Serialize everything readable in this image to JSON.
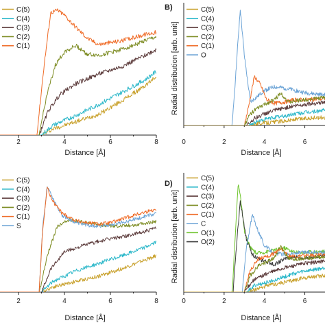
{
  "colors": {
    "C(5)": "#c8a02a",
    "C(4)": "#2ab7c9",
    "C(3)": "#5b3a3a",
    "C(2)": "#7d8c23",
    "C(1)": "#ef6a25",
    "O": "#6ba3d6",
    "S": "#6ba3d6",
    "C": "#6ba3d6",
    "O(1)": "#6fc42e",
    "O(2)": "#3b3b3b"
  },
  "chart_data": [
    {
      "panel": "A",
      "letter": "",
      "type": "line",
      "xlabel": "Distance [Å]",
      "ylabel": "",
      "xlim": [
        0,
        8
      ],
      "xticks": [
        "2",
        "4",
        "6",
        "8"
      ],
      "legend": [
        "C(5)",
        "C(4)",
        "C(3)",
        "C(2)",
        "C(1)"
      ],
      "legend_position": "top-left",
      "series": [
        {
          "name": "C(5)",
          "x": [
            0,
            3.0,
            3.5,
            4.5,
            5.5,
            6.5,
            7.5,
            8.0
          ],
          "y": [
            0,
            0,
            0.05,
            0.11,
            0.17,
            0.28,
            0.4,
            0.48
          ]
        },
        {
          "name": "C(4)",
          "x": [
            0,
            3.0,
            3.5,
            4.5,
            5.5,
            6.5,
            7.5,
            8.0
          ],
          "y": [
            0,
            0,
            0.08,
            0.16,
            0.25,
            0.35,
            0.45,
            0.52
          ]
        },
        {
          "name": "C(3)",
          "x": [
            0,
            2.9,
            3.3,
            3.8,
            4.5,
            5.5,
            6.5,
            7.5,
            8.0
          ],
          "y": [
            0,
            0,
            0.2,
            0.33,
            0.42,
            0.5,
            0.56,
            0.65,
            0.7
          ]
        },
        {
          "name": "C(2)",
          "x": [
            0,
            2.9,
            3.2,
            3.6,
            4.0,
            4.5,
            5.0,
            5.5,
            6.5,
            7.5,
            8.0
          ],
          "y": [
            0,
            0,
            0.3,
            0.57,
            0.68,
            0.73,
            0.66,
            0.65,
            0.7,
            0.77,
            0.8
          ]
        },
        {
          "name": "C(1)",
          "x": [
            0,
            2.8,
            3.1,
            3.4,
            3.7,
            4.0,
            4.5,
            5.0,
            5.5,
            6.5,
            7.5,
            8.0
          ],
          "y": [
            0,
            0,
            0.55,
            1.0,
            1.02,
            0.98,
            0.88,
            0.79,
            0.74,
            0.77,
            0.82,
            0.84
          ]
        }
      ]
    },
    {
      "panel": "B",
      "letter": "B)",
      "type": "line",
      "xlabel": "Distance [Å]",
      "ylabel": "Radial distribution [arb. unit]",
      "xlim": [
        0,
        7
      ],
      "xticks": [
        "0",
        "2",
        "4",
        "6"
      ],
      "legend": [
        "C(5)",
        "C(4)",
        "C(3)",
        "C(2)",
        "C(1)",
        "O"
      ],
      "legend_position": "top-left",
      "series": [
        {
          "name": "O",
          "x": [
            0,
            2.4,
            2.6,
            2.8,
            3.0,
            3.3,
            3.6,
            4.0,
            4.5,
            5.0,
            5.5,
            6.0,
            7.0
          ],
          "y": [
            0,
            0,
            0.5,
            1.0,
            0.6,
            0.2,
            0.24,
            0.3,
            0.33,
            0.32,
            0.3,
            0.28,
            0.26
          ]
        },
        {
          "name": "C(1)",
          "x": [
            0,
            3.0,
            3.2,
            3.5,
            3.8,
            4.1,
            4.5,
            5.0,
            5.5,
            6.0,
            7.0
          ],
          "y": [
            0,
            0,
            0.15,
            0.42,
            0.35,
            0.22,
            0.19,
            0.2,
            0.22,
            0.22,
            0.23
          ]
        },
        {
          "name": "C(2)",
          "x": [
            0,
            3.0,
            3.3,
            3.6,
            4.0,
            4.5,
            4.8,
            5.2,
            5.6,
            6.0,
            7.0
          ],
          "y": [
            0,
            0,
            0.1,
            0.14,
            0.18,
            0.22,
            0.28,
            0.2,
            0.21,
            0.22,
            0.24
          ]
        },
        {
          "name": "C(3)",
          "x": [
            0,
            3.1,
            3.5,
            4.0,
            4.5,
            5.0,
            5.5,
            6.0,
            7.0
          ],
          "y": [
            0,
            0,
            0.06,
            0.1,
            0.13,
            0.15,
            0.17,
            0.18,
            0.2
          ]
        },
        {
          "name": "C(4)",
          "x": [
            0,
            3.2,
            3.6,
            4.0,
            4.5,
            5.0,
            5.5,
            6.0,
            7.0
          ],
          "y": [
            0,
            0,
            0.03,
            0.05,
            0.07,
            0.08,
            0.1,
            0.11,
            0.13
          ]
        },
        {
          "name": "C(5)",
          "x": [
            0,
            3.3,
            3.8,
            4.5,
            5.0,
            5.5,
            6.0,
            7.0
          ],
          "y": [
            0,
            0,
            0.02,
            0.03,
            0.04,
            0.05,
            0.06,
            0.07
          ]
        }
      ]
    },
    {
      "panel": "C",
      "letter": "",
      "type": "line",
      "xlabel": "Distance [Å]",
      "ylabel": "",
      "xlim": [
        0,
        8
      ],
      "xticks": [
        "2",
        "4",
        "6",
        "8"
      ],
      "legend": [
        "C(5)",
        "C(4)",
        "C(3)",
        "C(2)",
        "C(1)",
        "S"
      ],
      "legend_position": "top-left",
      "series": [
        {
          "name": "C(5)",
          "x": [
            0,
            3.0,
            3.5,
            4.5,
            5.5,
            6.5,
            7.5,
            8.0
          ],
          "y": [
            0,
            0,
            0.05,
            0.1,
            0.15,
            0.22,
            0.3,
            0.34
          ]
        },
        {
          "name": "C(4)",
          "x": [
            0,
            3.0,
            3.5,
            4.5,
            5.5,
            6.5,
            7.5,
            8.0
          ],
          "y": [
            0,
            0,
            0.1,
            0.2,
            0.27,
            0.34,
            0.42,
            0.47
          ]
        },
        {
          "name": "C(3)",
          "x": [
            0,
            3.0,
            3.4,
            4.0,
            5.0,
            6.0,
            7.0,
            8.0
          ],
          "y": [
            0,
            0,
            0.22,
            0.38,
            0.45,
            0.5,
            0.54,
            0.6
          ]
        },
        {
          "name": "C(2)",
          "x": [
            0,
            2.9,
            3.3,
            3.7,
            4.2,
            5.0,
            6.0,
            7.0,
            8.0
          ],
          "y": [
            0,
            0,
            0.38,
            0.62,
            0.68,
            0.65,
            0.62,
            0.63,
            0.66
          ]
        },
        {
          "name": "S",
          "x": [
            0,
            2.9,
            3.05,
            3.25,
            3.5,
            3.9,
            4.5,
            5.0,
            5.5,
            6.0,
            7.0,
            8.0
          ],
          "y": [
            0,
            0,
            0.6,
            1.0,
            0.88,
            0.72,
            0.65,
            0.63,
            0.62,
            0.63,
            0.68,
            0.74
          ]
        },
        {
          "name": "C(1)",
          "x": [
            0,
            2.9,
            3.05,
            3.25,
            3.5,
            3.9,
            4.5,
            5.0,
            5.5,
            6.0,
            7.0,
            8.0
          ],
          "y": [
            0,
            0,
            0.58,
            0.98,
            0.85,
            0.74,
            0.67,
            0.65,
            0.64,
            0.65,
            0.72,
            0.78
          ]
        }
      ]
    },
    {
      "panel": "D",
      "letter": "D)",
      "type": "line",
      "xlabel": "Distance [Å]",
      "ylabel": "Radial distribution [arb. unit]",
      "xlim": [
        0,
        7
      ],
      "xticks": [
        "0",
        "2",
        "4",
        "6"
      ],
      "legend": [
        "C(5)",
        "C(4)",
        "C(3)",
        "C(2)",
        "C(1)",
        "C",
        "O(1)",
        "O(2)"
      ],
      "legend_position": "top-left",
      "series": [
        {
          "name": "O(1)",
          "x": [
            0,
            2.4,
            2.55,
            2.7,
            2.85,
            3.0,
            3.3,
            3.6,
            4.0,
            4.5,
            5.0,
            5.5,
            6.0,
            7.0
          ],
          "y": [
            0,
            0,
            0.5,
            1.0,
            0.8,
            0.55,
            0.4,
            0.35,
            0.36,
            0.38,
            0.4,
            0.36,
            0.36,
            0.37
          ]
        },
        {
          "name": "O(2)",
          "x": [
            0,
            2.45,
            2.6,
            2.8,
            2.95,
            3.1,
            3.4,
            3.7,
            4.0,
            4.5,
            5.0,
            5.5,
            6.0,
            7.0
          ],
          "y": [
            0,
            0,
            0.4,
            0.82,
            0.66,
            0.48,
            0.34,
            0.3,
            0.28,
            0.25,
            0.3,
            0.32,
            0.31,
            0.33
          ]
        },
        {
          "name": "C",
          "x": [
            0,
            2.9,
            3.1,
            3.4,
            3.7,
            4.0,
            4.5,
            5.0,
            5.5,
            6.0,
            7.0
          ],
          "y": [
            0,
            0,
            0.4,
            0.7,
            0.55,
            0.42,
            0.35,
            0.34,
            0.35,
            0.36,
            0.36
          ]
        },
        {
          "name": "C(1)",
          "x": [
            0,
            3.0,
            3.3,
            3.7,
            4.1,
            4.5,
            4.8,
            5.2,
            5.6,
            6.0,
            7.0
          ],
          "y": [
            0,
            0,
            0.2,
            0.3,
            0.32,
            0.35,
            0.4,
            0.33,
            0.32,
            0.33,
            0.34
          ]
        },
        {
          "name": "C(2)",
          "x": [
            0,
            3.0,
            3.3,
            3.7,
            4.1,
            4.5,
            4.8,
            5.2,
            5.6,
            6.0,
            7.0
          ],
          "y": [
            0,
            0,
            0.15,
            0.24,
            0.27,
            0.31,
            0.42,
            0.3,
            0.3,
            0.31,
            0.32
          ]
        },
        {
          "name": "C(3)",
          "x": [
            0,
            3.0,
            3.4,
            3.8,
            4.3,
            5.0,
            5.5,
            6.0,
            7.0
          ],
          "y": [
            0,
            0,
            0.1,
            0.14,
            0.18,
            0.22,
            0.24,
            0.26,
            0.28
          ]
        },
        {
          "name": "C(4)",
          "x": [
            0,
            3.1,
            3.5,
            4.0,
            4.5,
            5.0,
            5.5,
            6.0,
            7.0
          ],
          "y": [
            0,
            0,
            0.06,
            0.08,
            0.11,
            0.14,
            0.17,
            0.19,
            0.22
          ]
        },
        {
          "name": "C(5)",
          "x": [
            0,
            3.2,
            3.6,
            4.0,
            4.5,
            5.0,
            5.5,
            6.0,
            7.0
          ],
          "y": [
            0,
            0,
            0.03,
            0.05,
            0.07,
            0.09,
            0.11,
            0.13,
            0.15
          ]
        }
      ]
    }
  ]
}
